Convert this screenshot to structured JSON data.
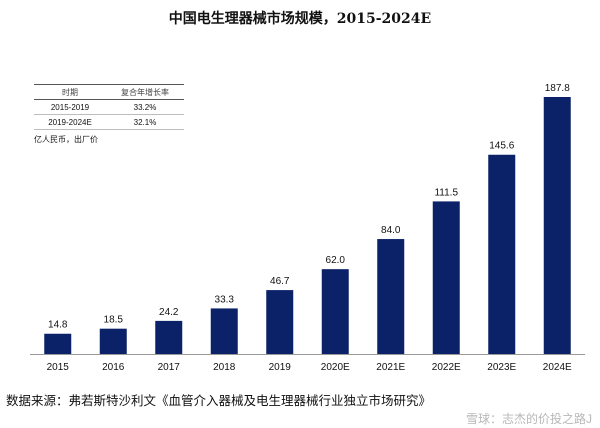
{
  "chart_data": {
    "type": "bar",
    "title": "中国电生理器械市场规模，2015-2024E",
    "categories": [
      "2015",
      "2016",
      "2017",
      "2018",
      "2019",
      "2020E",
      "2021E",
      "2022E",
      "2023E",
      "2024E"
    ],
    "values": [
      14.8,
      18.5,
      24.2,
      33.3,
      46.7,
      62.0,
      84.0,
      111.5,
      145.6,
      187.8
    ],
    "value_labels": [
      "14.8",
      "18.5",
      "24.2",
      "33.3",
      "46.7",
      "62.0",
      "84.0",
      "111.5",
      "145.6",
      "187.8"
    ],
    "unit": "亿人民币，出厂价",
    "ylim": [
      0,
      200
    ],
    "grid": false,
    "bar_color": "#0b2268",
    "cagr_table": {
      "headers": [
        "时期",
        "复合年增长率"
      ],
      "rows": [
        {
          "period": "2015-2019",
          "rate": "33.2%"
        },
        {
          "period": "2019-2024E",
          "rate": "32.1%"
        }
      ]
    }
  },
  "source": "数据来源：弗若斯特沙利文《血管介入器械及电生理器械行业独立市场研究》",
  "watermark": "雪球：志杰的价投之路J"
}
